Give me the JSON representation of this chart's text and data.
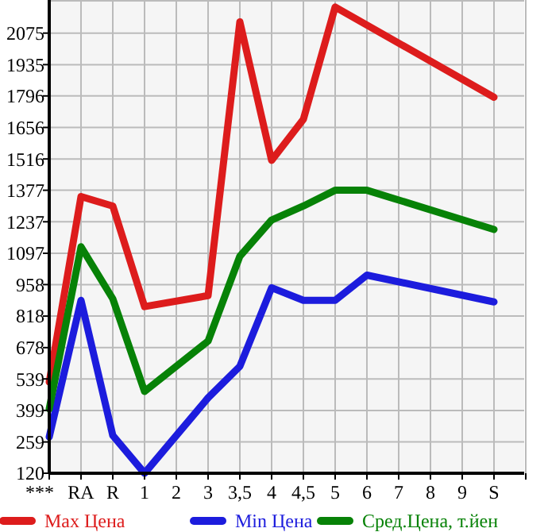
{
  "chart_data": {
    "type": "line",
    "categories": [
      "***",
      "RA",
      "R",
      "1",
      "2",
      "3",
      "3,5",
      "4",
      "4,5",
      "5",
      "6",
      "7",
      "8",
      "9",
      "S"
    ],
    "series": [
      {
        "name": "Max Цена",
        "color": "#dd1c1c",
        "values": [
          525,
          1349,
          1307,
          860,
          null,
          909,
          2125,
          1510,
          1692,
          2191,
          null,
          null,
          null,
          null,
          1790
        ]
      },
      {
        "name": "Min Цена",
        "color": "#1c1cdd",
        "values": [
          281,
          888,
          288,
          120,
          null,
          455,
          595,
          944,
          888,
          888,
          1000,
          null,
          null,
          null,
          881
        ]
      },
      {
        "name": "Сред.Цена, т.йен",
        "color": "#078207",
        "values": [
          406,
          1126,
          895,
          483,
          null,
          707,
          1084,
          1245,
          1307,
          1377,
          1377,
          null,
          null,
          null,
          1203
        ]
      }
    ],
    "ylim": [
      120,
      2215
    ],
    "yticks": [
      120,
      259,
      399,
      539,
      678,
      818,
      958,
      1097,
      1237,
      1377,
      1516,
      1656,
      1796,
      1935,
      2075
    ],
    "grid": true,
    "legend": "bottom",
    "marker": "none",
    "line_style": "solid"
  }
}
